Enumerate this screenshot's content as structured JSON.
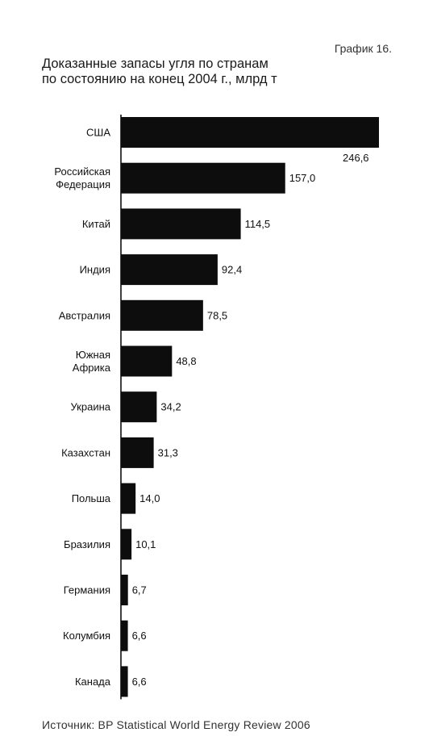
{
  "header": {
    "graph_label": "График 16.",
    "title_line1": "Доказанные запасы угля по странам",
    "title_line2": "по состоянию на конец 2004 г., млрд т"
  },
  "chart_data": {
    "type": "bar",
    "orientation": "horizontal",
    "categories": [
      [
        "США"
      ],
      [
        "Российская",
        "Федерация"
      ],
      [
        "Китай"
      ],
      [
        "Индия"
      ],
      [
        "Австралия"
      ],
      [
        "Южная",
        "Африка"
      ],
      [
        "Украина"
      ],
      [
        "Казахстан"
      ],
      [
        "Польша"
      ],
      [
        "Бразилия"
      ],
      [
        "Германия"
      ],
      [
        "Колумбия"
      ],
      [
        "Канада"
      ]
    ],
    "values": [
      246.6,
      157.0,
      114.5,
      92.4,
      78.5,
      48.8,
      34.2,
      31.3,
      14.0,
      10.1,
      6.7,
      6.6,
      6.6
    ],
    "value_labels": [
      "246,6",
      "157,0",
      "114,5",
      "92,4",
      "78,5",
      "48,8",
      "34,2",
      "31,3",
      "14,0",
      "10,1",
      "6,7",
      "6,6",
      "6,6"
    ],
    "xlim": [
      0,
      246.6
    ],
    "bar_color": "#0d0d0d",
    "axis_color": "#000000"
  },
  "footer": {
    "source": "Источник: BP Statistical World Energy Review 2006"
  }
}
